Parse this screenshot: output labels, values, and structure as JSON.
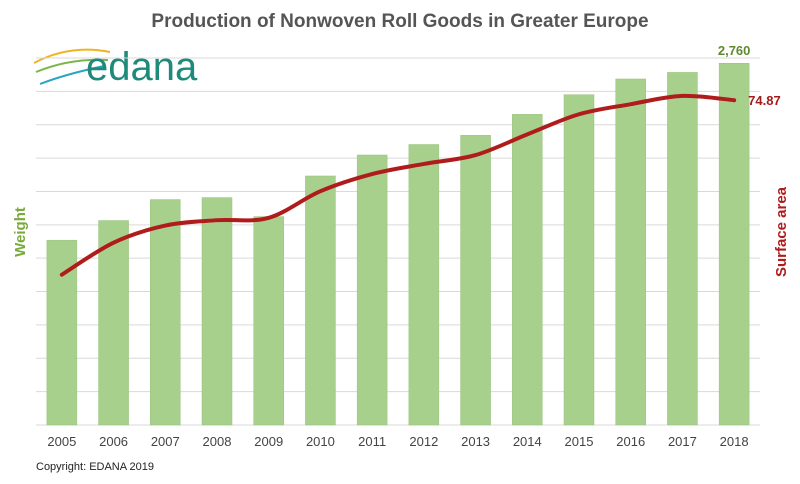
{
  "chart_data": {
    "type": "bar",
    "title": "Production of Nonwoven Roll Goods in Greater Europe",
    "categories": [
      "2005",
      "2006",
      "2007",
      "2008",
      "2009",
      "2010",
      "2011",
      "2012",
      "2013",
      "2014",
      "2015",
      "2016",
      "2017",
      "2018"
    ],
    "series": [
      {
        "name": "Weight",
        "type": "bar",
        "axis": "left",
        "values": [
          1410,
          1560,
          1720,
          1735,
          1590,
          1900,
          2060,
          2140,
          2210,
          2370,
          2520,
          2640,
          2690,
          2760
        ]
      },
      {
        "name": "Surface area",
        "type": "line",
        "axis": "right",
        "values": [
          45.4,
          50.8,
          53.7,
          54.6,
          55.0,
          59.5,
          62.4,
          64.1,
          65.6,
          69.1,
          72.5,
          74.2,
          75.6,
          74.87
        ]
      }
    ],
    "ylabel_left": "Weight",
    "ylabel_right": "Surface area",
    "ylim_left": [
      0,
      2800
    ],
    "ylim_right": [
      20,
      82
    ],
    "data_labels": {
      "weight_last": "2,760",
      "area_last": "74.87"
    },
    "grid": true,
    "legend": "none"
  },
  "logo": {
    "text": "edana"
  },
  "footer": {
    "copyright": "Copyright: EDANA 2019"
  },
  "colors": {
    "bar": "#a8d08d",
    "bar_stroke": "#98c27c",
    "line": "#b01c1c",
    "grid": "#d9d9d9",
    "logo": "#1f8a7a"
  }
}
